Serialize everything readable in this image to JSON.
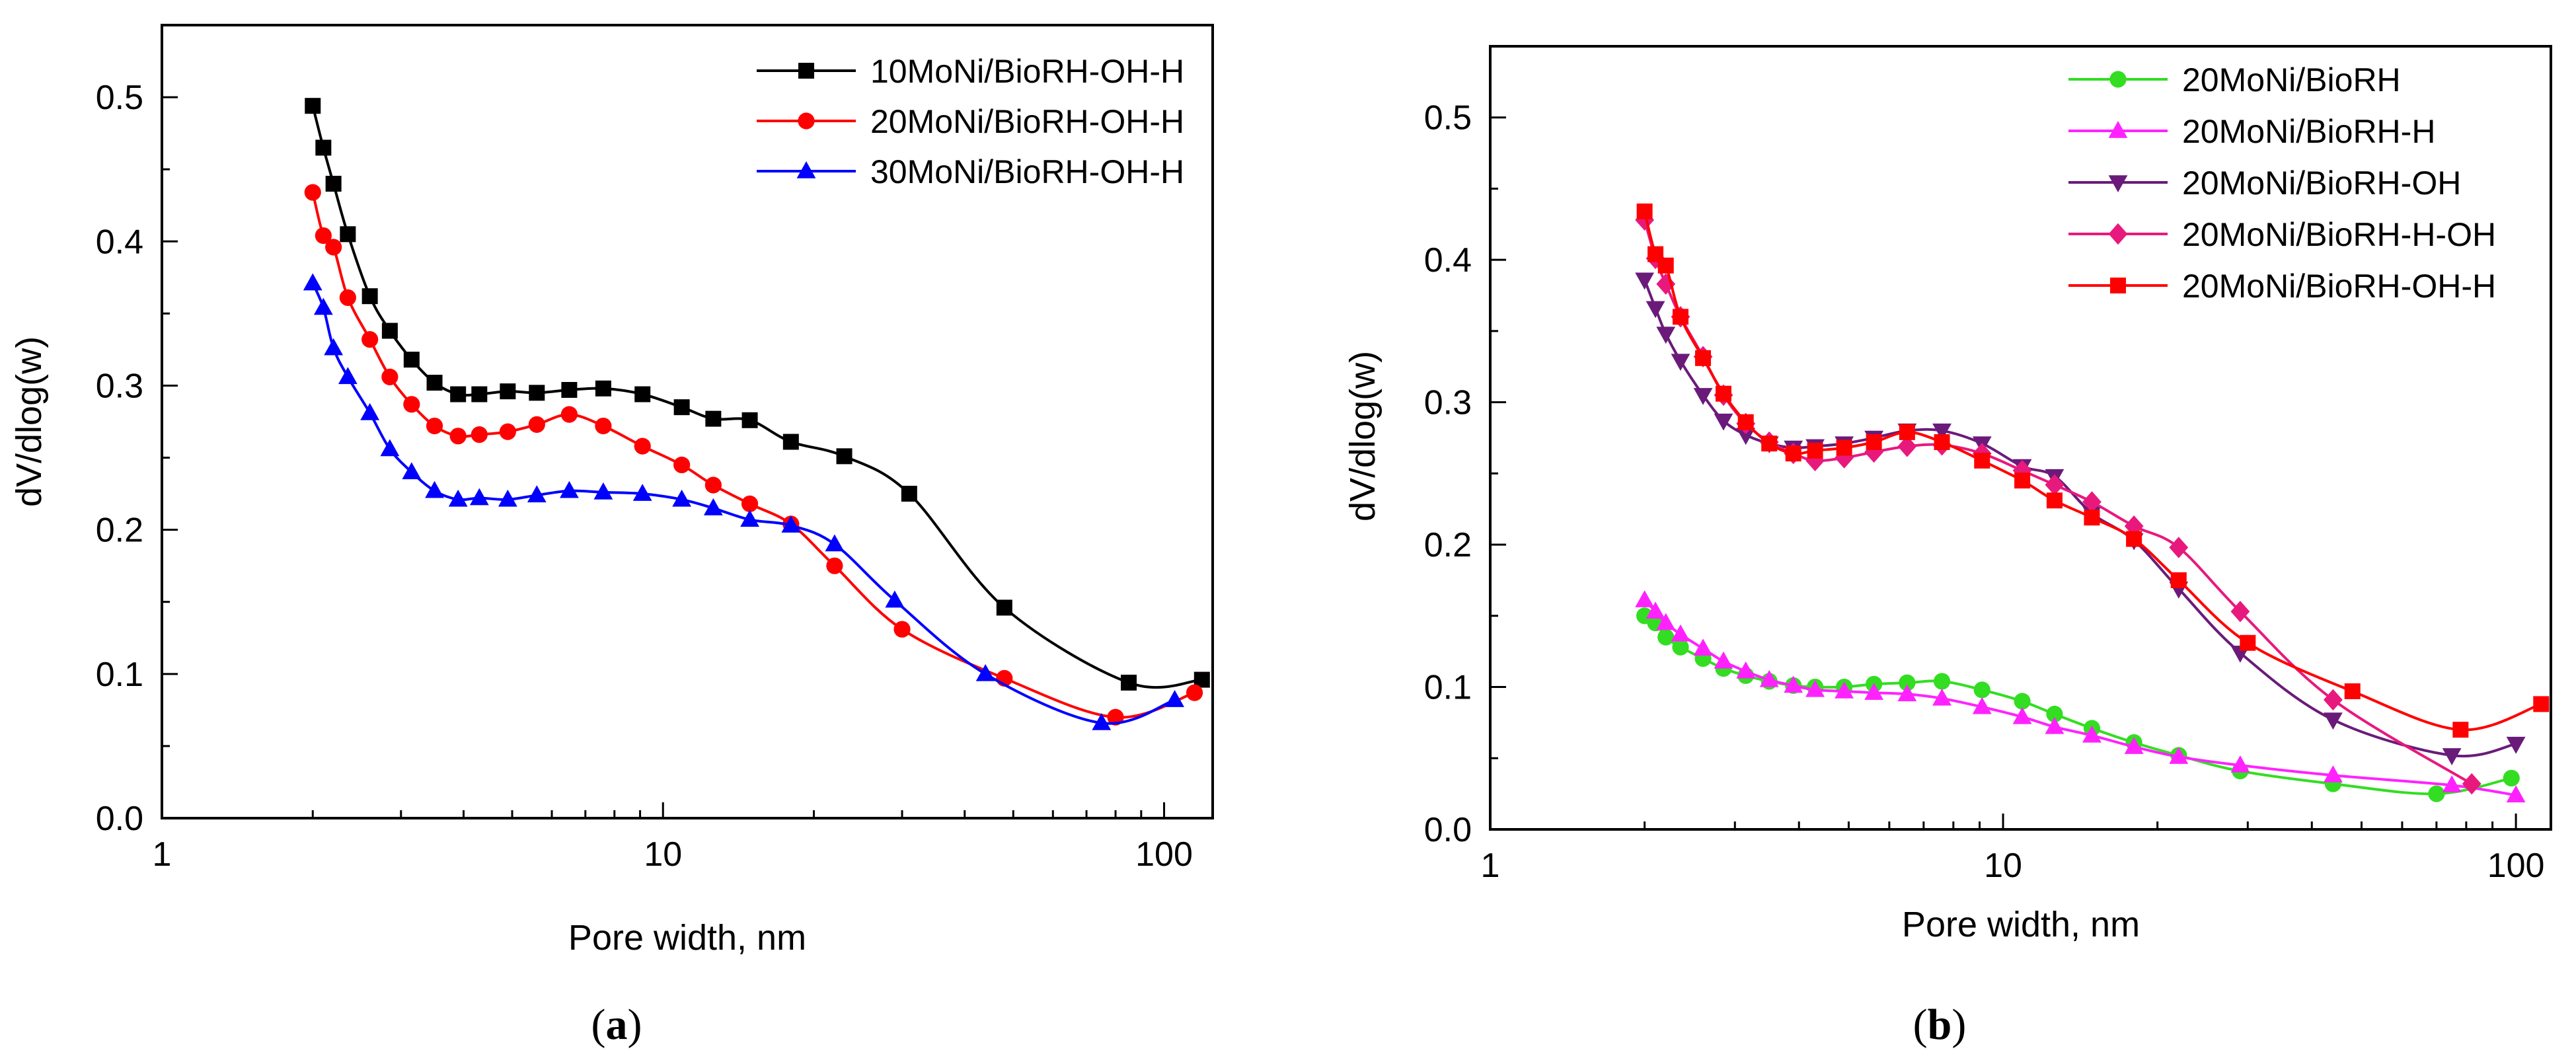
{
  "chart_data": [
    {
      "id": "a",
      "type": "line",
      "caption": "(a)",
      "caption_letter": "a",
      "xlabel": "Pore width, nm",
      "ylabel": "dV/dlog(w)",
      "xscale": "log",
      "xlim": [
        1,
        125
      ],
      "ylim": [
        0,
        0.55
      ],
      "xticks": [
        {
          "value": 1,
          "label": "1"
        },
        {
          "value": 10,
          "label": "10"
        },
        {
          "value": 100,
          "label": "100"
        }
      ],
      "yticks": [
        {
          "value": 0.0,
          "label": "0.0"
        },
        {
          "value": 0.1,
          "label": "0.1"
        },
        {
          "value": 0.2,
          "label": "0.2"
        },
        {
          "value": 0.3,
          "label": "0.3"
        },
        {
          "value": 0.4,
          "label": "0.4"
        },
        {
          "value": 0.5,
          "label": "0.5"
        }
      ],
      "legend_position": "top-right",
      "grid": false,
      "series": [
        {
          "name": "10MoNi/BioRH-OH-H",
          "color": "#000000",
          "marker": "square",
          "x": [
            2.0,
            2.1,
            2.2,
            2.35,
            2.6,
            2.85,
            3.15,
            3.5,
            3.9,
            4.3,
            4.9,
            5.6,
            6.5,
            7.6,
            9.1,
            10.9,
            12.6,
            14.9,
            18.0,
            23.0,
            31.0,
            48.0,
            85.0,
            119.0
          ],
          "y": [
            0.494,
            0.465,
            0.44,
            0.405,
            0.362,
            0.338,
            0.318,
            0.302,
            0.294,
            0.294,
            0.296,
            0.295,
            0.297,
            0.298,
            0.294,
            0.285,
            0.277,
            0.276,
            0.261,
            0.251,
            0.225,
            0.146,
            0.094,
            0.096
          ]
        },
        {
          "name": "20MoNi/BioRH-OH-H",
          "color": "#ff0000",
          "marker": "circle",
          "x": [
            2.0,
            2.1,
            2.2,
            2.35,
            2.6,
            2.85,
            3.15,
            3.5,
            3.9,
            4.3,
            4.9,
            5.6,
            6.5,
            7.6,
            9.1,
            10.9,
            12.6,
            14.9,
            18.0,
            22.0,
            30.0,
            48.0,
            80.0,
            115.0
          ],
          "y": [
            0.434,
            0.404,
            0.396,
            0.361,
            0.332,
            0.306,
            0.287,
            0.272,
            0.265,
            0.266,
            0.268,
            0.273,
            0.28,
            0.272,
            0.258,
            0.245,
            0.231,
            0.218,
            0.204,
            0.175,
            0.131,
            0.097,
            0.07,
            0.087
          ]
        },
        {
          "name": "30MoNi/BioRH-OH-H",
          "color": "#0000ff",
          "marker": "triangle",
          "x": [
            2.0,
            2.1,
            2.2,
            2.35,
            2.6,
            2.85,
            3.15,
            3.5,
            3.9,
            4.3,
            4.9,
            5.6,
            6.5,
            7.6,
            9.1,
            10.9,
            12.6,
            14.9,
            18.0,
            22.0,
            29.0,
            44.0,
            75.0,
            105.0
          ],
          "y": [
            0.371,
            0.354,
            0.326,
            0.306,
            0.281,
            0.256,
            0.24,
            0.227,
            0.221,
            0.222,
            0.221,
            0.224,
            0.227,
            0.226,
            0.225,
            0.221,
            0.215,
            0.207,
            0.203,
            0.19,
            0.151,
            0.1,
            0.066,
            0.082
          ]
        }
      ]
    },
    {
      "id": "b",
      "type": "line",
      "caption": "(b)",
      "caption_letter": "b",
      "xlabel": "Pore width, nm",
      "ylabel": "dV/dlog(w)",
      "xscale": "log",
      "xlim": [
        1,
        117
      ],
      "ylim": [
        0,
        0.55
      ],
      "xticks": [
        {
          "value": 1,
          "label": "1"
        },
        {
          "value": 10,
          "label": "10"
        },
        {
          "value": 100,
          "label": "100"
        }
      ],
      "yticks": [
        {
          "value": 0.0,
          "label": "0.0"
        },
        {
          "value": 0.1,
          "label": "0.1"
        },
        {
          "value": 0.2,
          "label": "0.2"
        },
        {
          "value": 0.3,
          "label": "0.3"
        },
        {
          "value": 0.4,
          "label": "0.4"
        },
        {
          "value": 0.5,
          "label": "0.5"
        }
      ],
      "legend_position": "top-right",
      "grid": false,
      "series": [
        {
          "name": "20MoNi/BioRH",
          "color": "#33dd22",
          "marker": "circle",
          "x": [
            2.0,
            2.1,
            2.2,
            2.35,
            2.6,
            2.85,
            3.15,
            3.5,
            3.9,
            4.3,
            4.9,
            5.6,
            6.5,
            7.6,
            9.1,
            10.9,
            12.6,
            14.9,
            18.0,
            22.0,
            29.0,
            44.0,
            70.0,
            98.0
          ],
          "y": [
            0.15,
            0.145,
            0.135,
            0.128,
            0.12,
            0.113,
            0.108,
            0.104,
            0.101,
            0.1,
            0.1,
            0.102,
            0.103,
            0.104,
            0.098,
            0.09,
            0.081,
            0.071,
            0.061,
            0.052,
            0.041,
            0.032,
            0.025,
            0.036
          ]
        },
        {
          "name": "20MoNi/BioRH-H",
          "color": "#ff22ff",
          "marker": "triangle",
          "x": [
            2.0,
            2.1,
            2.2,
            2.35,
            2.6,
            2.85,
            3.15,
            3.5,
            3.9,
            4.3,
            4.9,
            5.6,
            6.5,
            7.6,
            9.1,
            10.9,
            12.6,
            14.9,
            18.0,
            22.0,
            29.0,
            44.0,
            75.0,
            100.0
          ],
          "y": [
            0.161,
            0.153,
            0.145,
            0.137,
            0.127,
            0.118,
            0.111,
            0.105,
            0.101,
            0.098,
            0.097,
            0.096,
            0.095,
            0.092,
            0.086,
            0.079,
            0.072,
            0.066,
            0.058,
            0.051,
            0.045,
            0.038,
            0.031,
            0.024
          ]
        },
        {
          "name": "20MoNi/BioRH-OH",
          "color": "#6a1b7a",
          "marker": "triangle-down",
          "x": [
            2.0,
            2.1,
            2.2,
            2.35,
            2.6,
            2.85,
            3.15,
            3.5,
            3.9,
            4.3,
            4.9,
            5.6,
            6.5,
            7.6,
            9.1,
            10.9,
            12.6,
            14.9,
            18.0,
            22.0,
            29.0,
            44.0,
            75.0,
            100.0
          ],
          "y": [
            0.386,
            0.366,
            0.348,
            0.329,
            0.305,
            0.287,
            0.277,
            0.271,
            0.268,
            0.269,
            0.271,
            0.275,
            0.28,
            0.28,
            0.271,
            0.255,
            0.248,
            0.222,
            0.203,
            0.169,
            0.124,
            0.077,
            0.052,
            0.06
          ]
        },
        {
          "name": "20MoNi/BioRH-H-OH",
          "color": "#e8197d",
          "marker": "diamond",
          "x": [
            2.0,
            2.1,
            2.2,
            2.35,
            2.6,
            2.85,
            3.15,
            3.5,
            3.9,
            4.3,
            4.9,
            5.6,
            6.5,
            7.6,
            9.1,
            10.9,
            12.6,
            14.9,
            18.0,
            22.0,
            29.0,
            44.0,
            82.0
          ],
          "y": [
            0.428,
            0.401,
            0.383,
            0.36,
            0.332,
            0.305,
            0.285,
            0.272,
            0.264,
            0.259,
            0.261,
            0.265,
            0.269,
            0.27,
            0.264,
            0.252,
            0.242,
            0.23,
            0.213,
            0.198,
            0.153,
            0.091,
            0.032
          ]
        },
        {
          "name": "20MoNi/BioRH-OH-H",
          "color": "#ff0000",
          "marker": "square",
          "x": [
            2.0,
            2.1,
            2.2,
            2.35,
            2.6,
            2.85,
            3.15,
            3.5,
            3.9,
            4.3,
            4.9,
            5.6,
            6.5,
            7.6,
            9.1,
            10.9,
            12.6,
            14.9,
            18.0,
            22.0,
            30.0,
            48.0,
            78.0,
            112.0
          ],
          "y": [
            0.434,
            0.404,
            0.396,
            0.36,
            0.331,
            0.306,
            0.286,
            0.271,
            0.264,
            0.266,
            0.268,
            0.272,
            0.279,
            0.272,
            0.259,
            0.245,
            0.231,
            0.219,
            0.204,
            0.175,
            0.131,
            0.097,
            0.07,
            0.088
          ]
        }
      ]
    }
  ]
}
